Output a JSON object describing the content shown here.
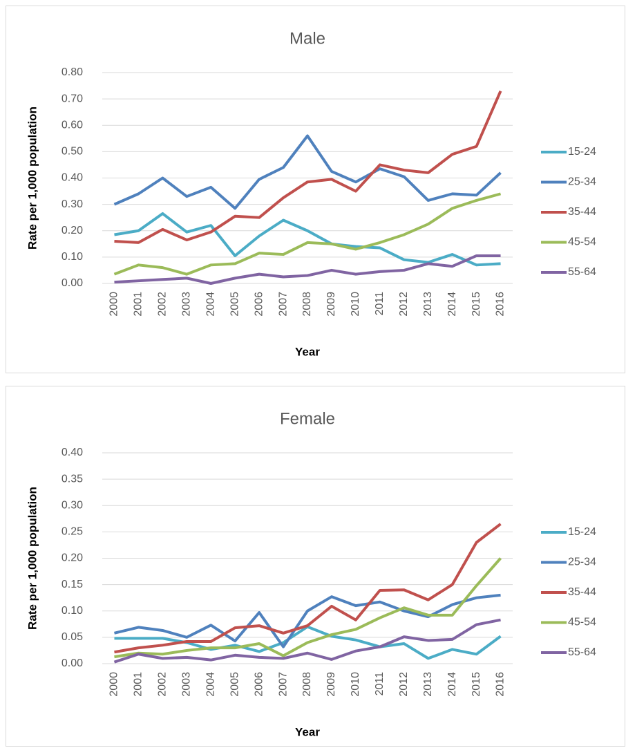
{
  "chart_data": [
    {
      "type": "line",
      "title": "Male",
      "x_label": "Year",
      "y_label": "Rate per 1,000 population",
      "categories": [
        "2000",
        "2001",
        "2002",
        "2003",
        "2004",
        "2005",
        "2006",
        "2007",
        "2008",
        "2009",
        "2010",
        "2011",
        "2012",
        "2013",
        "2014",
        "2015",
        "2016"
      ],
      "ylim": [
        0,
        0.8
      ],
      "yticks": [
        {
          "value": 0,
          "label": "0.00"
        },
        {
          "value": 0.1,
          "label": "0.10"
        },
        {
          "value": 0.2,
          "label": "0.20"
        },
        {
          "value": 0.3,
          "label": "0.30"
        },
        {
          "value": 0.4,
          "label": "0.40"
        },
        {
          "value": 0.5,
          "label": "0.50"
        },
        {
          "value": 0.6,
          "label": "0.60"
        },
        {
          "value": 0.7,
          "label": "0.70"
        },
        {
          "value": 0.8,
          "label": "0.80"
        }
      ],
      "grid": true,
      "legend": "right",
      "series": [
        {
          "name": "15-24",
          "color": "#4bacc6",
          "values": [
            0.185,
            0.2,
            0.265,
            0.195,
            0.22,
            0.105,
            0.18,
            0.24,
            0.2,
            0.15,
            0.14,
            0.135,
            0.09,
            0.08,
            0.11,
            0.07,
            0.075
          ]
        },
        {
          "name": "25-34",
          "color": "#4f81bd",
          "values": [
            0.3,
            0.34,
            0.4,
            0.33,
            0.365,
            0.285,
            0.395,
            0.44,
            0.56,
            0.425,
            0.385,
            0.435,
            0.405,
            0.315,
            0.34,
            0.335,
            0.42
          ]
        },
        {
          "name": "35-44",
          "color": "#c0504d",
          "values": [
            0.16,
            0.155,
            0.205,
            0.165,
            0.195,
            0.255,
            0.25,
            0.325,
            0.385,
            0.395,
            0.35,
            0.45,
            0.43,
            0.42,
            0.49,
            0.52,
            0.73
          ]
        },
        {
          "name": "45-54",
          "color": "#9bbb59",
          "values": [
            0.035,
            0.07,
            0.06,
            0.035,
            0.07,
            0.075,
            0.115,
            0.11,
            0.155,
            0.15,
            0.13,
            0.155,
            0.185,
            0.225,
            0.285,
            0.315,
            0.34
          ]
        },
        {
          "name": "55-64",
          "color": "#8064a2",
          "values": [
            0.005,
            0.01,
            0.015,
            0.02,
            0.0,
            0.02,
            0.035,
            0.025,
            0.03,
            0.05,
            0.035,
            0.045,
            0.05,
            0.075,
            0.065,
            0.105,
            0.105
          ]
        }
      ]
    },
    {
      "type": "line",
      "title": "Female",
      "x_label": "Year",
      "y_label": "Rate per 1,000 population",
      "categories": [
        "2000",
        "2001",
        "2002",
        "2003",
        "2004",
        "2005",
        "2006",
        "2007",
        "2008",
        "2009",
        "2010",
        "2011",
        "2012",
        "2013",
        "2014",
        "2015",
        "2016"
      ],
      "ylim": [
        0,
        0.4
      ],
      "yticks": [
        {
          "value": 0,
          "label": "0.00"
        },
        {
          "value": 0.05,
          "label": "0.05"
        },
        {
          "value": 0.1,
          "label": "0.10"
        },
        {
          "value": 0.15,
          "label": "0.15"
        },
        {
          "value": 0.2,
          "label": "0.20"
        },
        {
          "value": 0.25,
          "label": "0.25"
        },
        {
          "value": 0.3,
          "label": "0.30"
        },
        {
          "value": 0.35,
          "label": "0.35"
        },
        {
          "value": 0.4,
          "label": "0.40"
        }
      ],
      "grid": true,
      "legend": "right",
      "series": [
        {
          "name": "15-24",
          "color": "#4bacc6",
          "values": [
            0.048,
            0.048,
            0.048,
            0.04,
            0.027,
            0.035,
            0.023,
            0.04,
            0.07,
            0.052,
            0.045,
            0.032,
            0.038,
            0.01,
            0.027,
            0.018,
            0.052
          ]
        },
        {
          "name": "25-34",
          "color": "#4f81bd",
          "values": [
            0.058,
            0.069,
            0.063,
            0.05,
            0.073,
            0.043,
            0.097,
            0.032,
            0.1,
            0.127,
            0.11,
            0.117,
            0.1,
            0.089,
            0.112,
            0.125,
            0.13
          ]
        },
        {
          "name": "35-44",
          "color": "#c0504d",
          "values": [
            0.022,
            0.03,
            0.035,
            0.042,
            0.042,
            0.068,
            0.072,
            0.058,
            0.072,
            0.109,
            0.083,
            0.139,
            0.14,
            0.121,
            0.15,
            0.23,
            0.265
          ]
        },
        {
          "name": "45-54",
          "color": "#9bbb59",
          "values": [
            0.013,
            0.02,
            0.018,
            0.025,
            0.03,
            0.03,
            0.038,
            0.015,
            0.04,
            0.055,
            0.065,
            0.087,
            0.106,
            0.092,
            0.092,
            0.148,
            0.2
          ]
        },
        {
          "name": "55-64",
          "color": "#8064a2",
          "values": [
            0.003,
            0.018,
            0.01,
            0.012,
            0.007,
            0.016,
            0.012,
            0.01,
            0.02,
            0.008,
            0.024,
            0.032,
            0.051,
            0.044,
            0.046,
            0.074,
            0.083
          ]
        }
      ]
    }
  ]
}
